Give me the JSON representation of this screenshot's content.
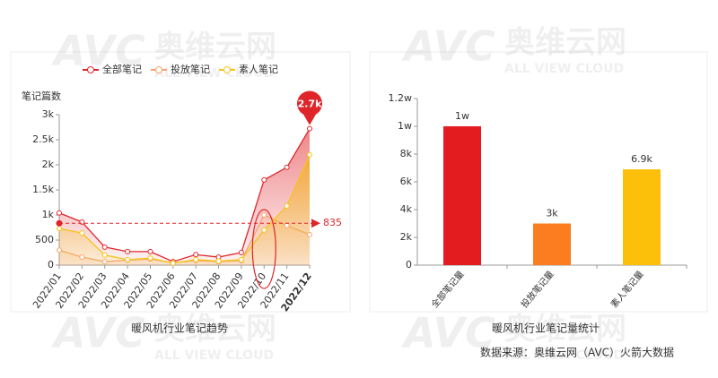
{
  "watermark": {
    "logo": "AVC",
    "name": "奥维云网",
    "tagline": "ALL VIEW CLOUD"
  },
  "source": "数据来源：奥维云网（AVC）火箭大数据",
  "chart_data": [
    {
      "type": "line",
      "title": "暖风机行业笔记趋势",
      "y_label": "笔记篇数",
      "categories": [
        "2022/01",
        "2022/02",
        "2022/03",
        "2022/04",
        "2022/05",
        "2022/06",
        "2022/07",
        "2022/08",
        "2022/09",
        "2022/10",
        "2022/11",
        "2022/12"
      ],
      "series": [
        {
          "name": "全部笔记",
          "color": "#e0252a",
          "values": [
            1040,
            860,
            360,
            270,
            270,
            70,
            210,
            160,
            250,
            1700,
            1950,
            2720
          ],
          "value_labels": [
            null,
            null,
            null,
            null,
            null,
            null,
            null,
            null,
            null,
            null,
            null,
            "2.7k"
          ]
        },
        {
          "name": "投放笔记",
          "color": "#f4a46c",
          "values": [
            300,
            160,
            70,
            100,
            120,
            50,
            90,
            70,
            90,
            1000,
            790,
            610
          ]
        },
        {
          "name": "素人笔记",
          "color": "#f5c518",
          "values": [
            730,
            640,
            200,
            110,
            140,
            40,
            110,
            80,
            110,
            700,
            1180,
            2200
          ]
        }
      ],
      "markline": {
        "value": 835
      },
      "ylim": [
        0,
        3000
      ],
      "yticks": [
        0,
        500,
        {
          "value": 1000,
          "label": "1k"
        },
        {
          "value": 1500,
          "label": "1.5k"
        },
        {
          "value": 2000,
          "label": "2k"
        },
        {
          "value": 2500,
          "label": "2.5k"
        },
        {
          "value": 3000,
          "label": "3k"
        }
      ],
      "grid": false
    },
    {
      "type": "bar",
      "title": "暖风机行业笔记量统计",
      "categories": [
        "全部笔记量",
        "投放笔记量",
        "素人笔记量"
      ],
      "values": [
        10000,
        3000,
        6900
      ],
      "value_labels": [
        "1w",
        "3k",
        "6.9k"
      ],
      "colors": [
        "#e31d1f",
        "#fb7d1f",
        "#fcbf0a"
      ],
      "ylim": [
        0,
        12000
      ],
      "yticks": [
        0,
        {
          "value": 2000,
          "label": "2k"
        },
        {
          "value": 4000,
          "label": "4k"
        },
        {
          "value": 6000,
          "label": "6k"
        },
        {
          "value": 8000,
          "label": "8k"
        },
        {
          "value": 10000,
          "label": "1w"
        },
        {
          "value": 12000,
          "label": "1.2w"
        }
      ],
      "grid": false
    }
  ]
}
